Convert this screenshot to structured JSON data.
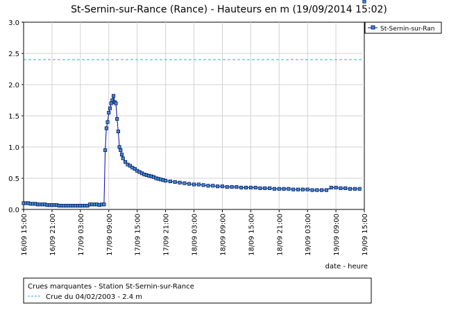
{
  "chart_data": {
    "type": "line",
    "title": "St-Sernin-sur-Rance (Rance) - Hauteurs en m (19/09/2014 15:02)",
    "xlabel": "date - heure",
    "ylabel": "",
    "xlim": [
      "16/09 15:00",
      "19/09 15:00"
    ],
    "ylim": [
      0,
      3.0
    ],
    "y_ticks": [
      "0.0",
      "0.5",
      "1.0",
      "1.5",
      "2.0",
      "2.5",
      "3.0"
    ],
    "x_ticks": [
      "16/09 15:00",
      "16/09 21:00",
      "17/09 03:00",
      "17/09 09:00",
      "17/09 15:00",
      "17/09 21:00",
      "18/09 03:00",
      "18/09 09:00",
      "18/09 15:00",
      "18/09 21:00",
      "19/09 03:00",
      "19/09 09:00",
      "19/09 15:00"
    ],
    "grid": true,
    "legend_position": "top-right",
    "series": [
      {
        "name": "St-Sernin-sur-Ran",
        "color": "#0000aa",
        "marker_color": "#3a8ec4",
        "x_hours_from_start": [
          0,
          0.5,
          1,
          1.5,
          2,
          2.5,
          3,
          3.5,
          4,
          4.5,
          5,
          5.5,
          6,
          6.5,
          7,
          7.5,
          8,
          8.5,
          9,
          9.5,
          10,
          10.5,
          11,
          11.5,
          12,
          12.5,
          13,
          13.5,
          14,
          14.5,
          15,
          15.5,
          16,
          16.5,
          17,
          17.25,
          17.5,
          17.75,
          18,
          18.25,
          18.5,
          18.75,
          19,
          19.25,
          19.5,
          19.75,
          20,
          20.25,
          20.5,
          20.75,
          21,
          21.5,
          22,
          22.5,
          23,
          23.5,
          24,
          24.5,
          25,
          25.5,
          26,
          26.5,
          27,
          27.5,
          28,
          28.5,
          29,
          29.5,
          30,
          31,
          32,
          33,
          34,
          35,
          36,
          37,
          38,
          39,
          40,
          41,
          42,
          43,
          44,
          45,
          46,
          47,
          48,
          49,
          50,
          51,
          52,
          53,
          54,
          55,
          56,
          57,
          58,
          59,
          60,
          61,
          62,
          63,
          64,
          65,
          66,
          67,
          68,
          69,
          70,
          71,
          72
        ],
        "values": [
          0.1,
          0.1,
          0.1,
          0.09,
          0.09,
          0.09,
          0.08,
          0.08,
          0.08,
          0.08,
          0.07,
          0.07,
          0.07,
          0.07,
          0.07,
          0.06,
          0.06,
          0.06,
          0.06,
          0.06,
          0.06,
          0.06,
          0.06,
          0.06,
          0.06,
          0.06,
          0.06,
          0.06,
          0.08,
          0.08,
          0.08,
          0.08,
          0.07,
          0.08,
          0.08,
          0.95,
          1.3,
          1.4,
          1.55,
          1.62,
          1.7,
          1.75,
          1.82,
          1.72,
          1.7,
          1.45,
          1.25,
          1.0,
          0.95,
          0.88,
          0.82,
          0.76,
          0.72,
          0.7,
          0.67,
          0.65,
          0.62,
          0.6,
          0.58,
          0.56,
          0.55,
          0.54,
          0.53,
          0.52,
          0.5,
          0.49,
          0.48,
          0.47,
          0.46,
          0.45,
          0.44,
          0.43,
          0.42,
          0.41,
          0.4,
          0.4,
          0.39,
          0.38,
          0.38,
          0.37,
          0.37,
          0.36,
          0.36,
          0.36,
          0.35,
          0.35,
          0.35,
          0.35,
          0.34,
          0.34,
          0.34,
          0.33,
          0.33,
          0.33,
          0.33,
          0.32,
          0.32,
          0.32,
          0.32,
          0.31,
          0.31,
          0.31,
          0.31,
          0.35,
          0.35,
          0.34,
          0.34,
          0.33,
          0.33,
          0.33
        ]
      }
    ],
    "reference_line": {
      "label": "Crue du 04/02/2003 - 2.4 m",
      "value": 2.4,
      "color": "#2aa8d8"
    },
    "footer": {
      "title": "Crues marquantes - Station St-Sernin-sur-Rance",
      "item": "Crue du 04/02/2003 - 2.4 m"
    }
  }
}
